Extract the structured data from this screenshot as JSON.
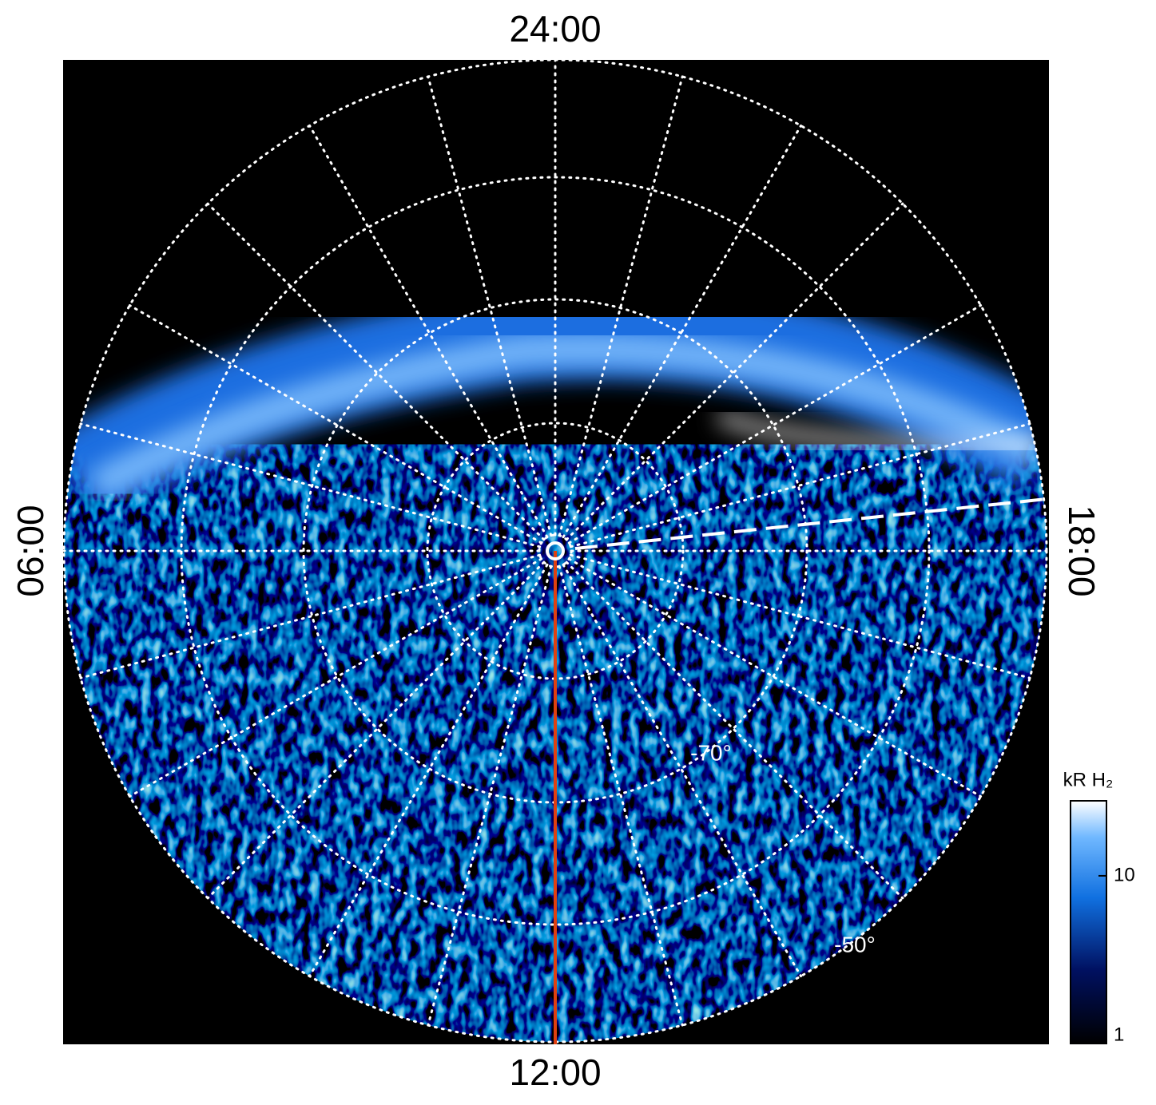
{
  "labels": {
    "top": "24:00",
    "bottom": "12:00",
    "left": "06:00",
    "right": "18:00"
  },
  "latitude_labels": [
    "-70°",
    "-50°"
  ],
  "colorbar": {
    "label": "kR H₂",
    "scale": "log",
    "range": [
      1,
      28
    ],
    "ticks": [
      1,
      10
    ]
  }
}
